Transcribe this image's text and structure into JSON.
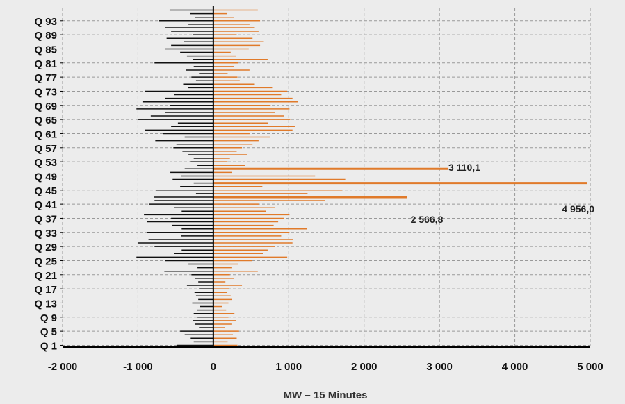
{
  "chart_data": {
    "type": "bar",
    "orientation": "horizontal",
    "xlabel": "MW – 15 Minutes",
    "xlim": [
      -2000,
      5000
    ],
    "xticks": [
      -2000,
      -1000,
      0,
      1000,
      2000,
      3000,
      4000,
      5000
    ],
    "xtick_labels": [
      "-2 000",
      "-1 000",
      "0",
      "1 000",
      "2 000",
      "3 000",
      "4 000",
      "5 000"
    ],
    "ylabel": "",
    "yticks": [
      "Q 1",
      "Q 5",
      "Q 9",
      "Q 13",
      "Q 17",
      "Q 21",
      "Q 25",
      "Q 29",
      "Q 33",
      "Q 37",
      "Q 41",
      "Q 45",
      "Q 49",
      "Q 53",
      "Q 57",
      "Q 61",
      "Q 65",
      "Q 69",
      "Q 73",
      "Q 77",
      "Q 81",
      "Q 85",
      "Q 89",
      "Q 93"
    ],
    "grid": true,
    "categories": [
      "Q 1",
      "Q 2",
      "Q 3",
      "Q 4",
      "Q 5",
      "Q 6",
      "Q 7",
      "Q 8",
      "Q 9",
      "Q 10",
      "Q 11",
      "Q 12",
      "Q 13",
      "Q 14",
      "Q 15",
      "Q 16",
      "Q 17",
      "Q 18",
      "Q 19",
      "Q 20",
      "Q 21",
      "Q 22",
      "Q 23",
      "Q 24",
      "Q 25",
      "Q 26",
      "Q 27",
      "Q 28",
      "Q 29",
      "Q 30",
      "Q 31",
      "Q 32",
      "Q 33",
      "Q 34",
      "Q 35",
      "Q 36",
      "Q 37",
      "Q 38",
      "Q 39",
      "Q 40",
      "Q 41",
      "Q 42",
      "Q 43",
      "Q 44",
      "Q 45",
      "Q 46",
      "Q 47",
      "Q 48",
      "Q 49",
      "Q 50",
      "Q 51",
      "Q 52",
      "Q 53",
      "Q 54",
      "Q 55",
      "Q 56",
      "Q 57",
      "Q 58",
      "Q 59",
      "Q 60",
      "Q 61",
      "Q 62",
      "Q 63",
      "Q 64",
      "Q 65",
      "Q 66",
      "Q 67",
      "Q 68",
      "Q 69",
      "Q 70",
      "Q 71",
      "Q 72",
      "Q 73",
      "Q 74",
      "Q 75",
      "Q 76",
      "Q 77",
      "Q 78",
      "Q 79",
      "Q 80",
      "Q 81",
      "Q 82",
      "Q 83",
      "Q 84",
      "Q 85",
      "Q 86",
      "Q 87",
      "Q 88",
      "Q 89",
      "Q 90",
      "Q 91",
      "Q 92",
      "Q 93",
      "Q 94",
      "Q 95",
      "Q 96"
    ],
    "series": [
      {
        "color": "#e07a2a",
        "values": [
          320,
          190,
          310,
          260,
          340,
          150,
          240,
          300,
          200,
          280,
          170,
          120,
          200,
          250,
          230,
          180,
          210,
          380,
          160,
          270,
          220,
          590,
          240,
          330,
          510,
          980,
          660,
          720,
          820,
          1050,
          1060,
          900,
          1010,
          1240,
          800,
          860,
          940,
          1010,
          700,
          820,
          600,
          1480,
          2566.8,
          1250,
          1710,
          650,
          4956.0,
          1750,
          1350,
          250,
          3110.1,
          420,
          190,
          220,
          450,
          310,
          380,
          520,
          600,
          750,
          480,
          1050,
          1080,
          730,
          1020,
          940,
          820,
          1010,
          760,
          1120,
          1050,
          900,
          980,
          780,
          550,
          350,
          320,
          190,
          480,
          270,
          330,
          720,
          300,
          230,
          470,
          620,
          670,
          520,
          310,
          600,
          550,
          480,
          620,
          270,
          180,
          590
        ]
      },
      {
        "color": "#111111",
        "values": [
          -480,
          -260,
          -300,
          -380,
          -440,
          -190,
          -240,
          -270,
          -210,
          -260,
          -220,
          -180,
          -280,
          -200,
          -230,
          -250,
          -190,
          -350,
          -200,
          -240,
          -290,
          -650,
          -210,
          -330,
          -640,
          -1020,
          -520,
          -420,
          -780,
          -1000,
          -860,
          -430,
          -880,
          -420,
          -550,
          -880,
          -560,
          -920,
          -420,
          -520,
          -850,
          -780,
          -790,
          -230,
          -760,
          -440,
          -260,
          -540,
          -430,
          -570,
          -380,
          -210,
          -300,
          -260,
          -330,
          -410,
          -530,
          -490,
          -770,
          -380,
          -670,
          -910,
          -560,
          -470,
          -1000,
          -830,
          -640,
          -1020,
          -580,
          -940,
          -640,
          -520,
          -910,
          -340,
          -400,
          -230,
          -290,
          -190,
          -360,
          -260,
          -780,
          -270,
          -350,
          -440,
          -640,
          -560,
          -390,
          -620,
          -270,
          -560,
          -640,
          -330,
          -720,
          -240,
          -310,
          -580
        ]
      }
    ],
    "annotations": [
      {
        "text": "3 110,1"
      },
      {
        "text": "4 956,0"
      },
      {
        "text": "2 566,8"
      }
    ]
  }
}
